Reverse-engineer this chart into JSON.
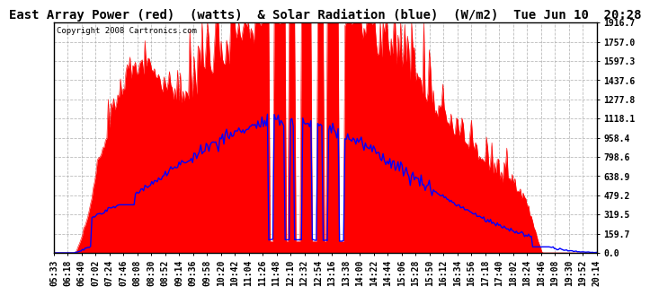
{
  "title": "East Array Power (red)  (watts)  & Solar Radiation (blue)  (W/m2)  Tue Jun 10  20:28",
  "copyright": "Copyright 2008 Cartronics.com",
  "ymin": 0.0,
  "ymax": 1916.7,
  "yticks": [
    0.0,
    159.7,
    319.5,
    479.2,
    638.9,
    798.6,
    958.4,
    1118.1,
    1277.8,
    1437.6,
    1597.3,
    1757.0,
    1916.7
  ],
  "bg_color": "#ffffff",
  "plot_bg_color": "#ffffff",
  "grid_color": "#aaaaaa",
  "red_color": "#ff0000",
  "blue_color": "#0000ff",
  "title_fontsize": 10,
  "copyright_fontsize": 6.5,
  "tick_fontsize": 7,
  "xtick_labels": [
    "05:33",
    "06:18",
    "06:40",
    "07:02",
    "07:24",
    "07:46",
    "08:08",
    "08:30",
    "08:52",
    "09:14",
    "09:36",
    "09:58",
    "10:20",
    "10:42",
    "11:04",
    "11:26",
    "11:48",
    "12:10",
    "12:32",
    "12:54",
    "13:16",
    "13:38",
    "14:00",
    "14:22",
    "14:44",
    "15:06",
    "15:28",
    "15:50",
    "16:12",
    "16:34",
    "16:56",
    "17:18",
    "17:40",
    "18:02",
    "18:24",
    "18:46",
    "19:08",
    "19:30",
    "19:52",
    "20:14"
  ]
}
